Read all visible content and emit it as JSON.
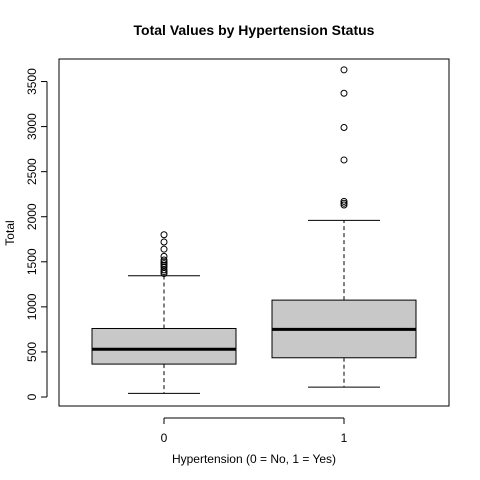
{
  "chart_data": {
    "type": "boxplot",
    "title": "Total Values by Hypertension Status",
    "xlabel": "Hypertension (0 = No, 1 = Yes)",
    "ylabel": "Total",
    "categories": [
      "0",
      "1"
    ],
    "ylim": [
      -100,
      3750
    ],
    "yticks": [
      0,
      500,
      1000,
      1500,
      2000,
      2500,
      3000,
      3500
    ],
    "grid": false,
    "box_fill": "#c8c8c8",
    "boxes": [
      {
        "category": "0",
        "whisker_low": 40,
        "q1": 365,
        "median": 530,
        "q3": 760,
        "whisker_high": 1345,
        "outliers": [
          1370,
          1390,
          1410,
          1440,
          1460,
          1480,
          1500,
          1520,
          1560,
          1640,
          1720,
          1800
        ]
      },
      {
        "category": "1",
        "whisker_low": 110,
        "q1": 435,
        "median": 750,
        "q3": 1075,
        "whisker_high": 1960,
        "outliers": [
          2130,
          2150,
          2170,
          2630,
          2990,
          3370,
          3630
        ]
      }
    ]
  }
}
